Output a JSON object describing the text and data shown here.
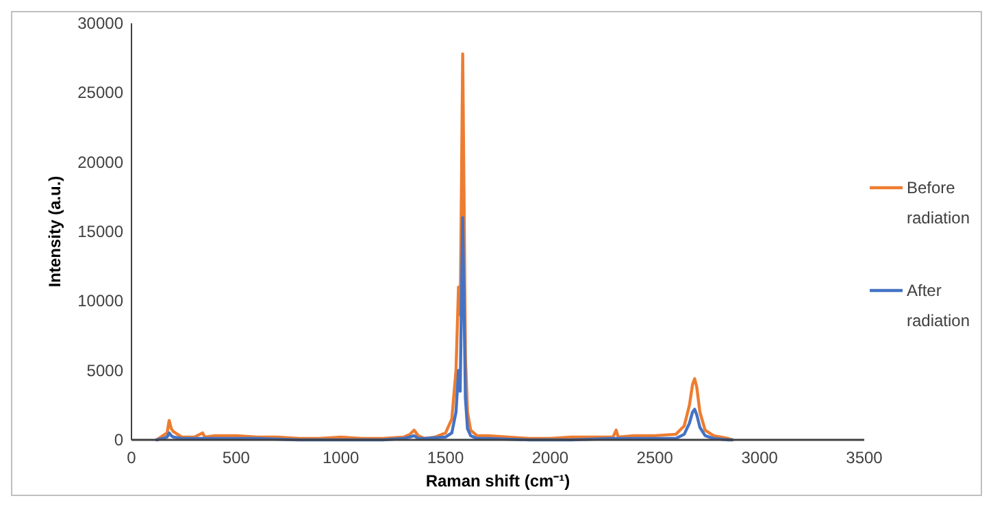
{
  "chart_data": {
    "type": "line",
    "xlabel": "Raman shift (cm⁻¹)",
    "ylabel": "Intensity (a.u.)",
    "xlim": [
      0,
      3500
    ],
    "ylim": [
      0,
      30000
    ],
    "xticks": [
      0,
      500,
      1000,
      1500,
      2000,
      2500,
      3000,
      3500
    ],
    "yticks": [
      0,
      5000,
      10000,
      15000,
      20000,
      25000,
      30000
    ],
    "grid": false,
    "legend": "right",
    "marker": "none",
    "line_style": "solid",
    "series": [
      {
        "name": "Before radiation",
        "color": "#ed7d31",
        "x": [
          120,
          150,
          170,
          180,
          190,
          200,
          220,
          240,
          300,
          340,
          350,
          400,
          500,
          600,
          700,
          800,
          900,
          1000,
          1100,
          1200,
          1300,
          1330,
          1350,
          1370,
          1400,
          1450,
          1500,
          1530,
          1550,
          1562,
          1570,
          1576,
          1582,
          1588,
          1595,
          1605,
          1620,
          1650,
          1700,
          1800,
          1900,
          2000,
          2100,
          2200,
          2300,
          2315,
          2325,
          2400,
          2500,
          2600,
          2640,
          2665,
          2680,
          2690,
          2700,
          2715,
          2740,
          2780,
          2850,
          2870
        ],
        "values": [
          0,
          300,
          500,
          1400,
          800,
          600,
          400,
          200,
          200,
          500,
          200,
          300,
          300,
          200,
          200,
          100,
          100,
          200,
          100,
          100,
          200,
          400,
          700,
          300,
          100,
          200,
          500,
          1500,
          5000,
          11000,
          9000,
          18000,
          27800,
          18000,
          6000,
          2000,
          700,
          300,
          300,
          200,
          100,
          100,
          200,
          200,
          200,
          700,
          200,
          300,
          300,
          400,
          1000,
          2500,
          4000,
          4400,
          3800,
          2000,
          700,
          300,
          100,
          0
        ]
      },
      {
        "name": "After radiation",
        "color": "#4472c4",
        "x": [
          120,
          150,
          170,
          180,
          190,
          200,
          240,
          300,
          400,
          600,
          800,
          1000,
          1200,
          1300,
          1330,
          1350,
          1370,
          1400,
          1500,
          1530,
          1550,
          1562,
          1570,
          1576,
          1582,
          1588,
          1595,
          1605,
          1620,
          1650,
          1700,
          1900,
          2100,
          2300,
          2500,
          2600,
          2640,
          2665,
          2680,
          2690,
          2700,
          2715,
          2740,
          2780,
          2850,
          2870
        ],
        "values": [
          0,
          100,
          200,
          500,
          300,
          200,
          100,
          100,
          100,
          100,
          0,
          0,
          0,
          100,
          200,
          300,
          100,
          100,
          200,
          500,
          2000,
          5000,
          3500,
          10000,
          16000,
          10000,
          3000,
          800,
          300,
          100,
          100,
          0,
          0,
          100,
          100,
          100,
          400,
          1200,
          2000,
          2200,
          1800,
          900,
          300,
          100,
          0,
          0
        ]
      }
    ]
  }
}
